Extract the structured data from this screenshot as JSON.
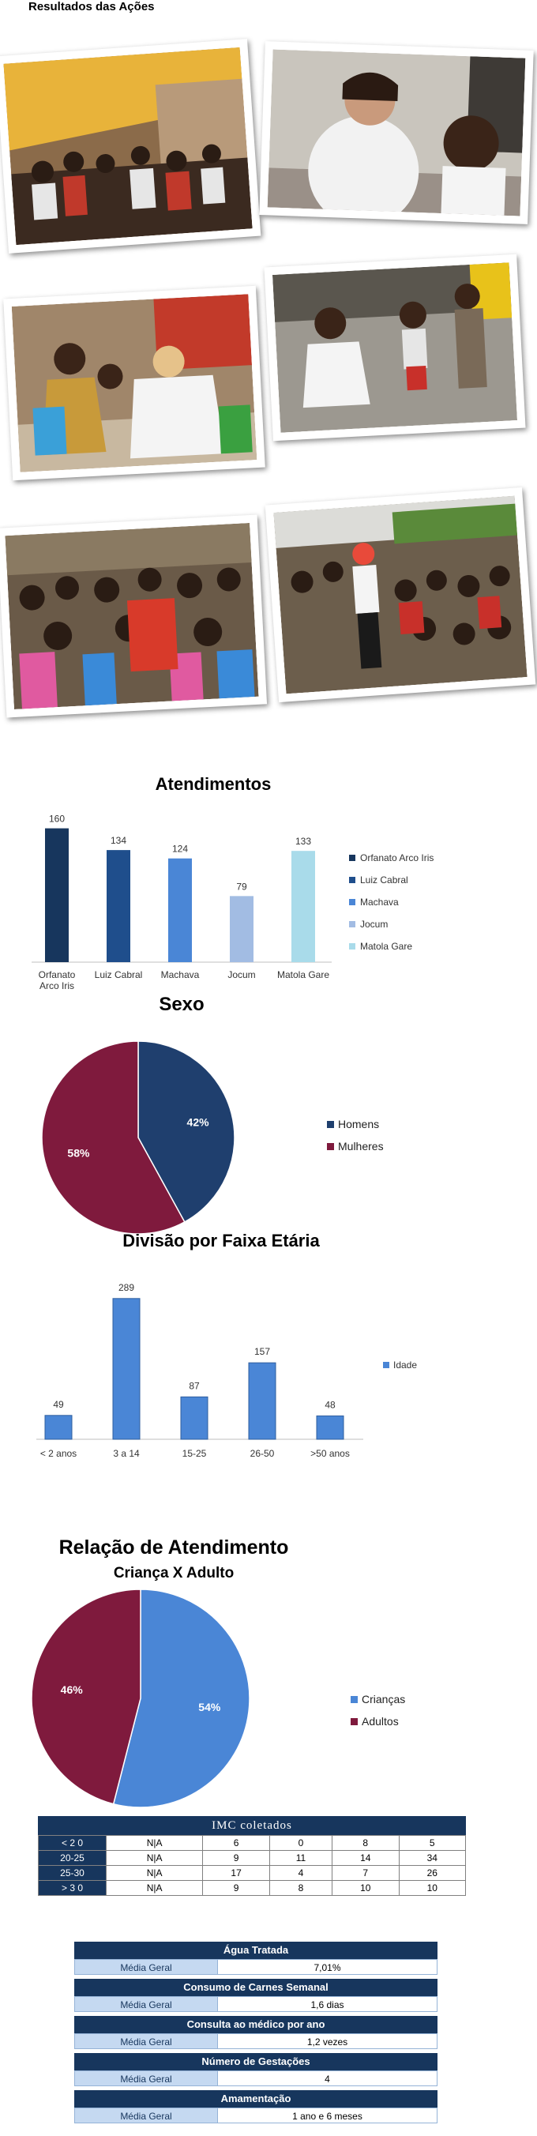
{
  "page": {
    "heading": "Resultados das Ações"
  },
  "colors": {
    "navy": "#17365d",
    "maroon": "#7f1a3d",
    "blue": "#4a86d6"
  },
  "photos": [
    {
      "name": "photo-group-meeting"
    },
    {
      "name": "photo-oral-medication"
    },
    {
      "name": "photo-patient-exam"
    },
    {
      "name": "photo-child-exam"
    },
    {
      "name": "photo-children-clown"
    },
    {
      "name": "photo-crowd-clown"
    }
  ],
  "chart_data": [
    {
      "type": "bar",
      "title": "Atendimentos",
      "categories": [
        "Orfanato Arco Iris",
        "Luiz Cabral",
        "Machava",
        "Jocum",
        "Matola Gare"
      ],
      "values": [
        160,
        134,
        124,
        79,
        133
      ],
      "colors": [
        "#17365d",
        "#1f4e8c",
        "#4a86d6",
        "#a2bce3",
        "#a9dbea"
      ],
      "legend": [
        "Orfanato Arco Iris",
        "Luiz Cabral",
        "Machava",
        "Jocum",
        "Matola Gare"
      ],
      "legend_position": "right",
      "ylim": [
        0,
        170
      ]
    },
    {
      "type": "pie",
      "title": "Sexo",
      "labels": [
        "Homens",
        "Mulheres"
      ],
      "values": [
        42,
        58
      ],
      "value_labels": [
        "42%",
        "58%"
      ],
      "colors": [
        "#1f3f6e",
        "#7f1a3d"
      ],
      "legend_position": "right"
    },
    {
      "type": "bar",
      "title": "Divisão por Faixa Etária",
      "categories": [
        "< 2 anos",
        "3 a 14",
        "15-25",
        "26-50",
        ">50 anos"
      ],
      "series": [
        {
          "name": "Idade",
          "values": [
            49,
            289,
            87,
            157,
            48
          ]
        }
      ],
      "legend_position": "right",
      "ylim": [
        0,
        300
      ]
    },
    {
      "type": "pie",
      "title": "Relação de Atendimento",
      "subtitle": "Criança X Adulto",
      "labels": [
        "Crianças",
        "Adultos"
      ],
      "values": [
        54,
        46
      ],
      "value_labels": [
        "54%",
        "46%"
      ],
      "colors": [
        "#4a86d6",
        "#7f1a3d"
      ],
      "legend_position": "right"
    },
    {
      "type": "table",
      "title": "IMC coletados",
      "rows": [
        [
          "< 2 0",
          "N|A",
          "6",
          "0",
          "8",
          "5"
        ],
        [
          "20-25",
          "N|A",
          "9",
          "11",
          "14",
          "34"
        ],
        [
          "25-30",
          "N|A",
          "17",
          "4",
          "7",
          "26"
        ],
        [
          "> 3 0",
          "N|A",
          "9",
          "8",
          "10",
          "10"
        ]
      ]
    }
  ],
  "summary": [
    {
      "title": "Água Tratada",
      "label": "Média Geral",
      "value": "7,01%"
    },
    {
      "title": "Consumo de Carnes Semanal",
      "label": "Média Geral",
      "value": "1,6 dias"
    },
    {
      "title": "Consulta ao médico por ano",
      "label": "Média Geral",
      "value": "1,2 vezes"
    },
    {
      "title": "Número de Gestações",
      "label": "Média Geral",
      "value": "4"
    },
    {
      "title": "Amamentação",
      "label": "Média Geral",
      "value": "1 ano e 6 meses"
    }
  ]
}
